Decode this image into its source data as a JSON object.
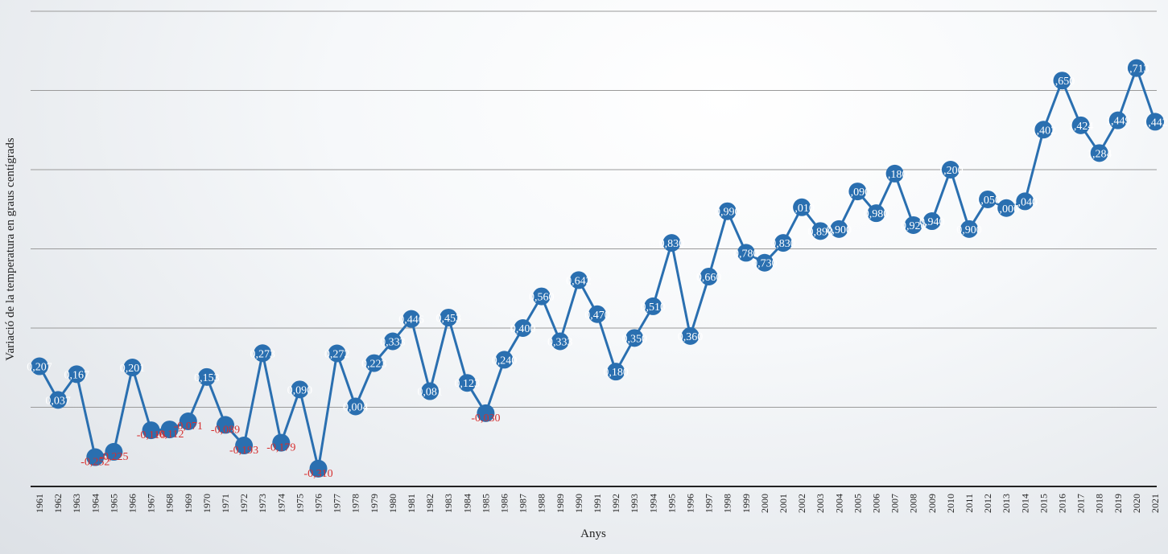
{
  "chart_data": {
    "type": "line",
    "title": "",
    "xlabel": "Anys",
    "ylabel": "Variació de la temperatura en graus centígrads",
    "ylim": [
      -0.4,
      2.0
    ],
    "grid": "horizontal",
    "legend": "none",
    "line_color": "#2a6fb0",
    "marker_color": "#2a6fb0",
    "positive_label_color": "#ffffff",
    "negative_label_color": "#d62e2e",
    "x": [
      1961,
      1962,
      1963,
      1964,
      1965,
      1966,
      1967,
      1968,
      1969,
      1970,
      1971,
      1972,
      1973,
      1974,
      1975,
      1976,
      1977,
      1978,
      1979,
      1980,
      1981,
      1982,
      1983,
      1984,
      1985,
      1986,
      1987,
      1988,
      1989,
      1990,
      1991,
      1992,
      1993,
      1994,
      1995,
      1996,
      1997,
      1998,
      1999,
      2000,
      2001,
      2002,
      2003,
      2004,
      2005,
      2006,
      2007,
      2008,
      2009,
      2010,
      2011,
      2012,
      2013,
      2014,
      2015,
      2016,
      2017,
      2018,
      2019,
      2020,
      2021
    ],
    "series": [
      {
        "values": [
          0.207,
          0.037,
          0.167,
          -0.252,
          -0.225,
          0.201,
          -0.116,
          -0.112,
          -0.071,
          0.153,
          -0.089,
          -0.193,
          0.273,
          -0.179,
          0.09,
          -0.31,
          0.272,
          0.004,
          0.223,
          0.333,
          0.446,
          0.081,
          0.453,
          0.123,
          -0.03,
          0.24,
          0.4,
          0.56,
          0.333,
          0.642,
          0.47,
          0.18,
          0.35,
          0.51,
          0.83,
          0.36,
          0.66,
          0.99,
          0.78,
          0.73,
          0.83,
          1.01,
          0.89,
          0.9,
          1.09,
          0.98,
          1.18,
          0.92,
          0.94,
          1.2,
          0.9,
          1.05,
          1.006,
          1.04,
          1.402,
          1.65,
          1.424,
          1.284,
          1.449,
          1.713,
          1.442
        ],
        "labels": [
          "0,207",
          "0,037",
          "0,167",
          "-0,252",
          "-0,225",
          "0,201",
          "-0,116",
          "-0,112",
          "-0,071",
          "0,153",
          "-0,089",
          "-0,193",
          "0,273",
          "-0,179",
          "0,090",
          "-0,310",
          "0,272",
          "0,004",
          "0,223",
          "0,333",
          "0,446",
          "0,081",
          "0,453",
          "0,123",
          "-0,030",
          "0,240",
          "0,400",
          "0,560",
          "0,333",
          "0,642",
          "0,470",
          "0,180",
          "0,350",
          "0,510",
          "0,830",
          "0,360",
          "0,660",
          "0,990",
          "0,780",
          "0,730",
          "0,830",
          "1,010",
          "0,890",
          "0,900",
          "1,090",
          "0,980",
          "1,180",
          "0,920",
          "0,940",
          "1,200",
          "0,900",
          "1,050",
          "1,006",
          "1,040",
          "1,402",
          "1,650",
          "1,424",
          "1,284",
          "1,449",
          "1,713",
          "1,442"
        ]
      }
    ]
  }
}
